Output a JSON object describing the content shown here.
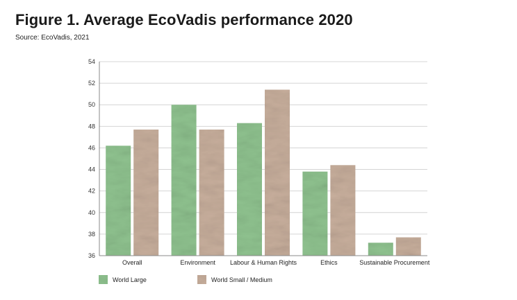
{
  "header": {
    "title": "Figure 1. Average EcoVadis performance 2020",
    "subtitle": "Source: EcoVadis, 2021"
  },
  "chart_data": {
    "type": "bar",
    "title": "Figure 1. Average EcoVadis performance 2020",
    "subtitle": "Source: EcoVadis, 2021",
    "xlabel": "",
    "ylabel": "",
    "categories": [
      "Overall",
      "Environment",
      "Labour & Human Rights",
      "Ethics",
      "Sustainable Procurement"
    ],
    "series": [
      {
        "name": "World Large",
        "values": [
          46.2,
          50.0,
          48.3,
          43.8,
          37.2
        ],
        "color": "#8fc28f"
      },
      {
        "name": "World Small / Medium",
        "values": [
          47.7,
          47.7,
          51.4,
          44.4,
          37.7
        ],
        "color": "#c7ae9c"
      }
    ],
    "ylim": [
      36,
      54
    ],
    "yticks": [
      36,
      38,
      40,
      42,
      44,
      46,
      48,
      50,
      52,
      54
    ],
    "grid": true,
    "legend_position": "bottom-left"
  }
}
